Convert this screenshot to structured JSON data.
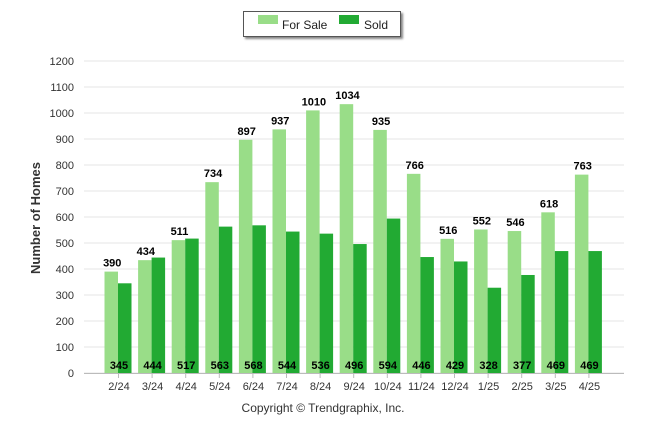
{
  "chart_data": {
    "type": "bar",
    "categories": [
      "2/24",
      "3/24",
      "4/24",
      "5/24",
      "6/24",
      "7/24",
      "8/24",
      "9/24",
      "10/24",
      "11/24",
      "12/24",
      "1/25",
      "2/25",
      "3/25",
      "4/25"
    ],
    "series": [
      {
        "name": "For Sale",
        "color": "#99dd88",
        "values": [
          390,
          434,
          511,
          734,
          897,
          937,
          1010,
          1034,
          935,
          766,
          516,
          552,
          546,
          618,
          763
        ]
      },
      {
        "name": "Sold",
        "color": "#22aa33",
        "values": [
          345,
          444,
          517,
          563,
          568,
          544,
          536,
          496,
          594,
          446,
          429,
          328,
          377,
          469,
          469
        ]
      }
    ],
    "ylabel": "Number of Homes",
    "ylim": [
      0,
      1200
    ],
    "yticks": [
      0,
      100,
      200,
      300,
      400,
      500,
      600,
      700,
      800,
      900,
      1000,
      1100,
      1200
    ],
    "grid": true,
    "legend": "top-center"
  },
  "legend": {
    "for_sale_label": "For Sale",
    "sold_label": "Sold"
  },
  "footer": {
    "copyright": "Copyright © Trendgraphix, Inc."
  }
}
